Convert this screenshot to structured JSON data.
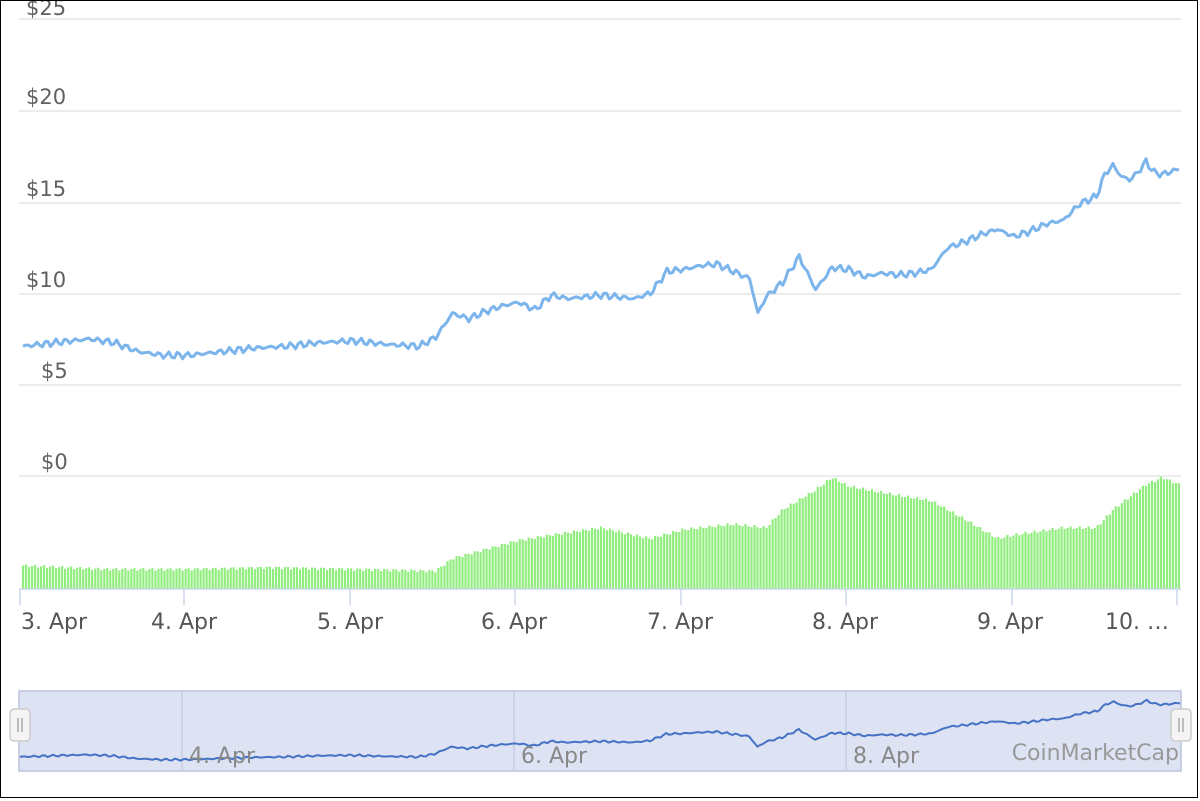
{
  "chart_data": {
    "type": "line",
    "watermark": "CoinMarketCap",
    "y_axis": {
      "ticks": [
        "$0",
        "$5",
        "$10",
        "$15",
        "$20",
        "$25"
      ],
      "values": [
        0,
        5,
        10,
        15,
        20,
        25
      ],
      "ylim": [
        0,
        25
      ]
    },
    "x_axis": {
      "ticks": [
        "3. Apr",
        "4. Apr",
        "5. Apr",
        "6. Apr",
        "7. Apr",
        "8. Apr",
        "9. Apr",
        "10. …"
      ],
      "xlim": [
        3.0,
        10.0
      ]
    },
    "navigator_labels": [
      "4. Apr",
      "6. Apr",
      "8. Apr"
    ],
    "grid": true,
    "colors": {
      "price_line": "#7cb5ec",
      "volume_bars": "#90ed7d",
      "navigator_line": "#4572c4",
      "navigator_fill": "#dde3f3"
    },
    "series": [
      {
        "type": "line",
        "x_unit": "day of April",
        "x": [
          3.0,
          3.2,
          3.4,
          3.55,
          3.7,
          3.85,
          4.0,
          4.2,
          4.4,
          4.6,
          4.8,
          5.0,
          5.2,
          5.4,
          5.5,
          5.6,
          5.7,
          5.8,
          5.9,
          6.0,
          6.1,
          6.2,
          6.3,
          6.5,
          6.7,
          6.8,
          6.9,
          7.0,
          7.1,
          7.2,
          7.3,
          7.4,
          7.45,
          7.5,
          7.6,
          7.7,
          7.8,
          7.9,
          8.0,
          8.1,
          8.2,
          8.3,
          8.4,
          8.5,
          8.6,
          8.7,
          8.8,
          8.9,
          9.0,
          9.1,
          9.2,
          9.3,
          9.4,
          9.5,
          9.55,
          9.6,
          9.65,
          9.7,
          9.75,
          9.8,
          9.85,
          9.9,
          10.0
        ],
        "values": [
          7.1,
          7.3,
          7.5,
          7.3,
          6.8,
          6.6,
          6.6,
          6.8,
          7.0,
          7.1,
          7.3,
          7.4,
          7.2,
          7.1,
          7.6,
          8.9,
          8.6,
          9.0,
          9.3,
          9.5,
          9.1,
          9.9,
          9.7,
          9.9,
          9.7,
          10.0,
          11.2,
          11.3,
          11.5,
          11.6,
          11.2,
          10.8,
          8.9,
          9.8,
          10.6,
          12.0,
          10.2,
          11.4,
          11.3,
          10.9,
          11.1,
          11.0,
          11.1,
          11.3,
          12.5,
          12.8,
          13.2,
          13.5,
          13.1,
          13.4,
          13.8,
          14.0,
          14.9,
          15.3,
          16.5,
          17.0,
          16.4,
          16.2,
          16.6,
          17.2,
          16.6,
          16.5,
          16.8
        ]
      },
      {
        "type": "bar",
        "x_unit": "day of April",
        "x": [
          3.0,
          3.5,
          4.0,
          4.5,
          5.0,
          5.5,
          5.6,
          5.8,
          6.0,
          6.2,
          6.5,
          6.8,
          7.0,
          7.3,
          7.5,
          7.6,
          7.8,
          7.9,
          8.0,
          8.3,
          8.5,
          8.7,
          8.9,
          9.0,
          9.3,
          9.5,
          9.6,
          9.8,
          9.9,
          10.0
        ],
        "values": [
          0.13,
          0.11,
          0.11,
          0.12,
          0.11,
          0.1,
          0.17,
          0.22,
          0.27,
          0.3,
          0.34,
          0.28,
          0.33,
          0.36,
          0.34,
          0.44,
          0.55,
          0.62,
          0.57,
          0.52,
          0.49,
          0.39,
          0.28,
          0.3,
          0.34,
          0.34,
          0.44,
          0.58,
          0.62,
          0.58
        ]
      }
    ]
  }
}
